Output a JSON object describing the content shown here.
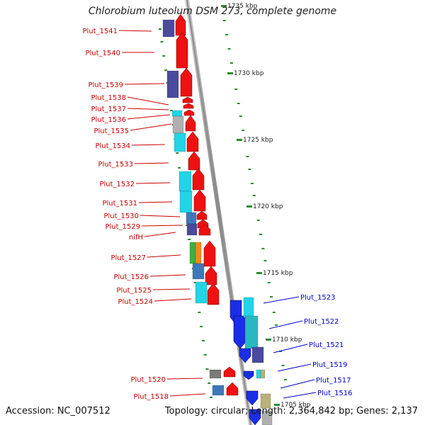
{
  "title": "Chlorobium luteolum DSM 273, complete genome",
  "footer": {
    "accession": "Accession: NC_007512",
    "topology": "Topology: circular; Length: 2,364,842 bp; Genes: 2,137"
  },
  "tick_labels": [
    "1735 kbp",
    "1730 kbp",
    "1725 kbp",
    "1720 kbp",
    "1715 kbp",
    "1710 kbp",
    "1705 kbp"
  ],
  "genes_left": [
    "Plut_1541",
    "Plut_1540",
    "Plut_1539",
    "Plut_1538",
    "Plut_1537",
    "Plut_1536",
    "Plut_1535",
    "Plut_1534",
    "Plut_1533",
    "Plut_1532",
    "Plut_1531",
    "Plut_1530",
    "Plut_1529",
    "nifH",
    "Plut_1527",
    "Plut_1526",
    "Plut_1525",
    "Plut_1524",
    "Plut_1520",
    "Plut_1518"
  ],
  "genes_right": [
    "Plut_1523",
    "Plut_1522",
    "Plut_1521",
    "Plut_1519",
    "Plut_1517",
    "Plut_1516"
  ],
  "colors": {
    "forward_label": "#cc0000",
    "reverse_label": "#0000cc",
    "backbone": "#8c8c8c",
    "tick": "#2e8b2e",
    "arrow_red": "#ee1111",
    "arrow_blue": "#1a2ee8",
    "navy": "#4a4a9e",
    "cyan": "#22d4e6",
    "gray": "#b0b0b0",
    "steel": "#3f78b8",
    "green": "#3fb03f",
    "orange": "#f08a1a",
    "olive": "#b8b07a",
    "teal": "#2ab8c0"
  }
}
